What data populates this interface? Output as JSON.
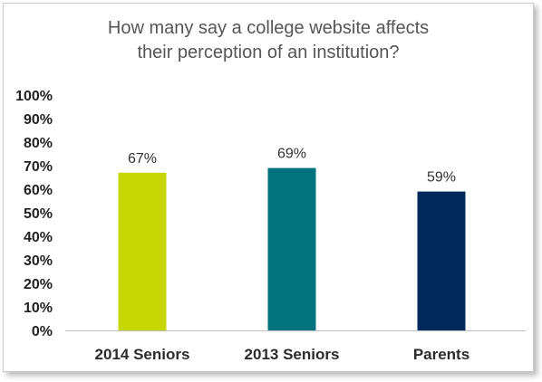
{
  "chart_data": {
    "type": "bar",
    "title_lines": [
      "How many say a college website affects",
      "their perception of an institution?"
    ],
    "categories": [
      "2014 Seniors",
      "2013 Seniors",
      "Parents"
    ],
    "values": [
      67,
      69,
      59
    ],
    "data_labels": [
      "67%",
      "69%",
      "59%"
    ],
    "bar_colors": [
      "#c5d600",
      "#00737e",
      "#00295c"
    ],
    "y_ticks": [
      "0%",
      "10%",
      "20%",
      "30%",
      "40%",
      "50%",
      "60%",
      "70%",
      "80%",
      "90%",
      "100%"
    ],
    "ylim": [
      0,
      100
    ],
    "grid": false,
    "legend": "none"
  }
}
